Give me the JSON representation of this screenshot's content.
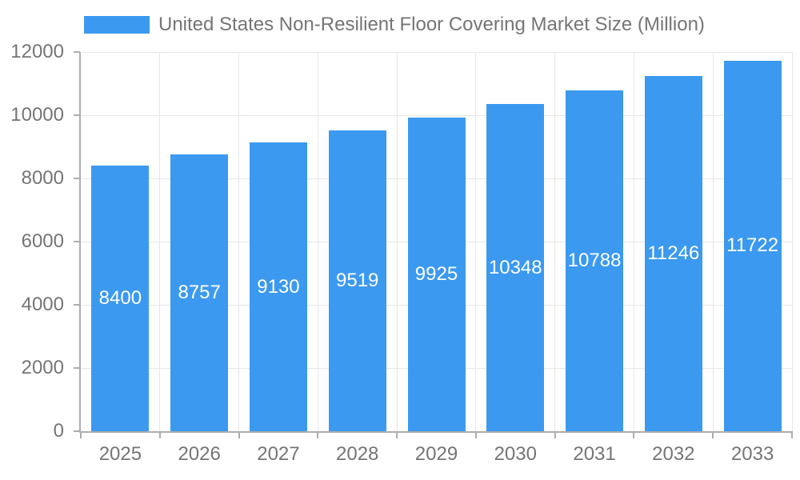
{
  "chart_data": {
    "type": "bar",
    "title": "United States Non-Resilient Floor Covering Market Size (Million)",
    "legend": {
      "label": "United States Non-Resilient Floor Covering Market Size (Million)",
      "position": "top"
    },
    "categories": [
      "2025",
      "2026",
      "2027",
      "2028",
      "2029",
      "2030",
      "2031",
      "2032",
      "2033"
    ],
    "series": [
      {
        "name": "United States Non-Resilient Floor Covering Market Size (Million)",
        "values": [
          8400,
          8757,
          9130,
          9519,
          9925,
          10348,
          10788,
          11246,
          11722
        ]
      }
    ],
    "xlabel": "",
    "ylabel": "",
    "ylim": [
      0,
      12000
    ],
    "yticks": [
      0,
      2000,
      4000,
      6000,
      8000,
      10000,
      12000
    ],
    "grid": true,
    "bar_value_labels_inside": true,
    "colors": {
      "bar": "#3b99f0",
      "bar_label": "#ffffff",
      "axis_text": "#757575",
      "legend_text": "#757575",
      "grid_line": "#e6e6e6",
      "axis_line": "#adadad",
      "background": "#ffffff"
    }
  }
}
